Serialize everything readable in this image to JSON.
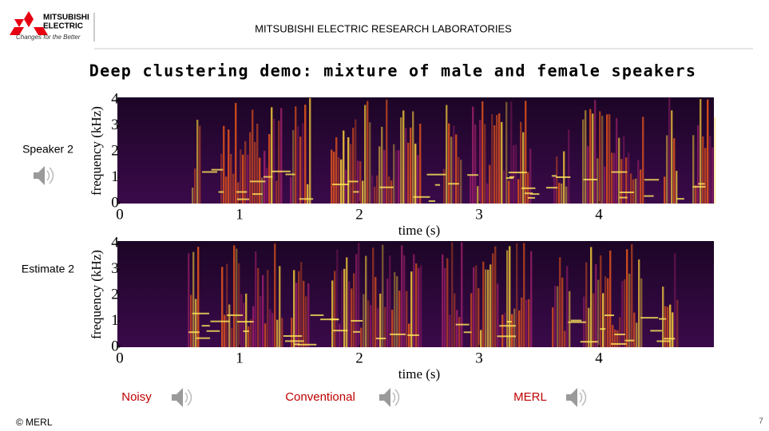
{
  "header": {
    "logo_line1": "MITSUBISHI",
    "logo_line2": "ELECTRIC",
    "logo_tagline": "Changes for the Better",
    "org": "MITSUBISHI ELECTRIC RESEARCH LABORATORIES"
  },
  "title": "Deep clustering demo: mixture of male and female speakers",
  "panels": [
    {
      "label": "Speaker 2",
      "ylabel": "frequency (kHz)",
      "xlabel": "time (s)",
      "xticks": [
        0,
        1,
        2,
        3,
        4
      ],
      "yticks": [
        0,
        1,
        2,
        3,
        4
      ]
    },
    {
      "label": "Estimate 2",
      "ylabel": "frequency (kHz)",
      "xlabel": "time (s)",
      "xticks": [
        0,
        1,
        2,
        3,
        4
      ],
      "yticks": [
        0,
        1,
        2,
        3,
        4
      ]
    }
  ],
  "audio": [
    "Noisy",
    "Conventional",
    "MERL"
  ],
  "footer": {
    "copyright": "© MERL",
    "page": "7"
  }
}
